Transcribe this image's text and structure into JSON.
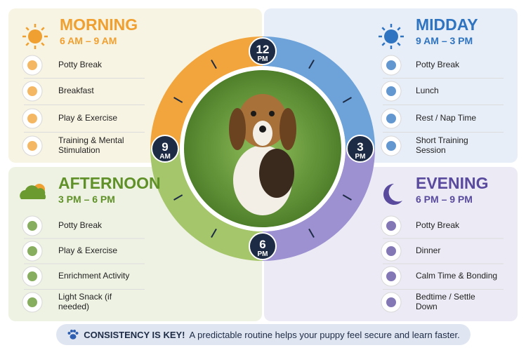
{
  "sections": [
    {
      "title": "MORNING",
      "time": "6 AM – 9 AM",
      "items": [
        "Potty Break",
        "Breakfast",
        "Play & Exercise",
        "Training & Mental Stimulation"
      ]
    },
    {
      "title": "MIDDAY",
      "time": "9 AM – 3 PM",
      "items": [
        "Potty Break",
        "Lunch",
        "Rest / Nap Time",
        "Short Training Session"
      ]
    },
    {
      "title": "AFTERNOON",
      "time": "3 PM – 6 PM",
      "items": [
        "Potty Break",
        "Play & Exercise",
        "Enrichment Activity",
        "Light Snack (if needed)"
      ]
    },
    {
      "title": "EVENING",
      "time": "6 PM – 9 PM",
      "items": [
        "Potty Break",
        "Dinner",
        "Calm Time & Bonding",
        "Bedtime / Settle Down"
      ]
    }
  ],
  "clock": [
    {
      "hour": "12",
      "period": "PM"
    },
    {
      "hour": "3",
      "period": "PM"
    },
    {
      "hour": "6",
      "period": "PM"
    },
    {
      "hour": "9",
      "period": "AM"
    }
  ],
  "footer": {
    "highlight": "CONSISTENCY IS KEY!",
    "text": "A predictable routine helps your puppy feel secure and learn faster."
  }
}
